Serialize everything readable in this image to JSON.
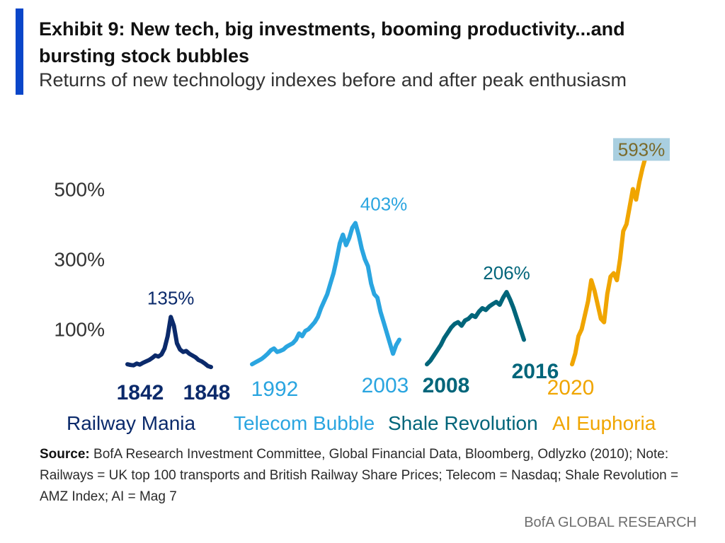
{
  "header": {
    "title": "Exhibit 9: New tech, big investments, booming productivity...and bursting stock bubbles",
    "subtitle": "Returns of new technology indexes before and after peak enthusiasm"
  },
  "chart_data": {
    "type": "line",
    "ylabel": "",
    "yticks": [
      "500%",
      "300%",
      "100%"
    ],
    "ytick_values": [
      500,
      300,
      100
    ],
    "ylim": [
      -40,
      620
    ],
    "grid": false,
    "series": [
      {
        "name": "Railway Mania",
        "color": "#0b2a6b",
        "x_start": "1842",
        "x_end": "1848",
        "peak_label": "135%",
        "values": [
          0,
          -2,
          -3,
          2,
          -1,
          4,
          8,
          12,
          18,
          25,
          22,
          28,
          45,
          80,
          135,
          110,
          60,
          42,
          35,
          38,
          30,
          25,
          20,
          12,
          8,
          2,
          -5,
          -8
        ]
      },
      {
        "name": "Telecom Bubble",
        "color": "#2aa5e0",
        "x_start": "1992",
        "x_end": "2003",
        "peak_label": "403%",
        "values": [
          0,
          5,
          10,
          15,
          22,
          30,
          40,
          45,
          35,
          38,
          42,
          50,
          55,
          60,
          70,
          88,
          80,
          95,
          100,
          110,
          120,
          135,
          160,
          180,
          200,
          230,
          260,
          300,
          345,
          370,
          340,
          360,
          390,
          403,
          370,
          330,
          300,
          280,
          230,
          200,
          190,
          150,
          120,
          90,
          60,
          30,
          55,
          70
        ]
      },
      {
        "name": "Shale Revolution",
        "color": "#00657a",
        "x_start": "2008",
        "x_end": "2016",
        "peak_label": "206%",
        "values": [
          0,
          10,
          25,
          40,
          55,
          75,
          90,
          105,
          115,
          120,
          110,
          125,
          130,
          140,
          135,
          150,
          160,
          155,
          165,
          172,
          178,
          170,
          190,
          206,
          185,
          160,
          130,
          100,
          70
        ]
      },
      {
        "name": "AI Euphoria",
        "color": "#f0a500",
        "x_start": "2020",
        "x_end": "",
        "peak_label": "593%",
        "values": [
          0,
          30,
          80,
          100,
          140,
          180,
          240,
          210,
          170,
          130,
          120,
          200,
          250,
          260,
          240,
          300,
          380,
          400,
          450,
          500,
          470,
          520,
          560,
          593
        ]
      }
    ]
  },
  "footer": {
    "source_label": "Source:",
    "source_text": " BofA Research Investment Committee, Global Financial Data, Bloomberg, Odlyzko (2010); Note: Railways = UK top 100 transports and British Railway Share Prices; Telecom = Nasdaq; Shale Revolution = AMZ Index; AI = Mag 7",
    "brand": "BofA GLOBAL RESEARCH"
  }
}
